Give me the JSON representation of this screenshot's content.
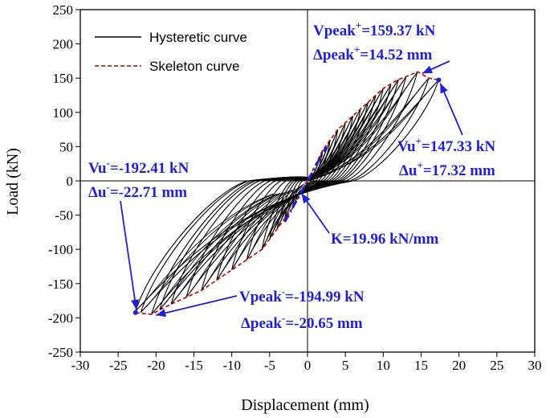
{
  "chart_data": {
    "type": "line",
    "xlabel": "Displacement (mm)",
    "ylabel": "Load (kN)",
    "xlim": [
      -30,
      30
    ],
    "ylim": [
      -250,
      250
    ],
    "x_ticks": [
      -30,
      -25,
      -20,
      -15,
      -10,
      -5,
      0,
      5,
      10,
      15,
      20,
      25,
      30
    ],
    "y_ticks": [
      -250,
      -200,
      -150,
      -100,
      -50,
      0,
      50,
      100,
      150,
      200,
      250
    ],
    "legend": [
      {
        "name": "Hysteretic curve",
        "color": "#000000",
        "style": "solid"
      },
      {
        "name": "Skeleton curve",
        "color": "#c00000",
        "style": "dashed"
      }
    ],
    "hysteresis_cycles": [
      {
        "x_pos": 2,
        "y_pos": 45,
        "x_neg": -2,
        "y_neg": -40
      },
      {
        "x_pos": 3,
        "y_pos": 60,
        "x_neg": -3,
        "y_neg": -55
      },
      {
        "x_pos": 4,
        "y_pos": 75,
        "x_neg": -4,
        "y_neg": -70
      },
      {
        "x_pos": 5,
        "y_pos": 85,
        "x_neg": -5,
        "y_neg": -85
      },
      {
        "x_pos": 6,
        "y_pos": 95,
        "x_neg": -6,
        "y_neg": -100
      },
      {
        "x_pos": 7,
        "y_pos": 105,
        "x_neg": -8,
        "y_neg": -115
      },
      {
        "x_pos": 8,
        "y_pos": 115,
        "x_neg": -10,
        "y_neg": -130
      },
      {
        "x_pos": 9,
        "y_pos": 125,
        "x_neg": -12,
        "y_neg": -145
      },
      {
        "x_pos": 10,
        "y_pos": 135,
        "x_neg": -14,
        "y_neg": -160
      },
      {
        "x_pos": 11,
        "y_pos": 140,
        "x_neg": -16,
        "y_neg": -170
      },
      {
        "x_pos": 12,
        "y_pos": 148,
        "x_neg": -18,
        "y_neg": -180
      },
      {
        "x_pos": 13,
        "y_pos": 152,
        "x_neg": -19.5,
        "y_neg": -188
      },
      {
        "x_pos": 14.5,
        "y_pos": 159,
        "x_neg": -20.6,
        "y_neg": -195
      },
      {
        "x_pos": 16,
        "y_pos": 150,
        "x_neg": -22,
        "y_neg": -192
      },
      {
        "x_pos": 17.3,
        "y_pos": 147,
        "x_neg": -22.7,
        "y_neg": -190
      }
    ],
    "skeleton_curve": {
      "x": [
        -22.71,
        -20.65,
        -18,
        -16,
        -14,
        -12,
        -10,
        -8,
        -6,
        -4,
        -2,
        0,
        2,
        4,
        6,
        8,
        10,
        12,
        13,
        14.52,
        16,
        17.32
      ],
      "y": [
        -192.41,
        -194.99,
        -180,
        -170,
        -160,
        -145,
        -130,
        -115,
        -100,
        -70,
        -40,
        0,
        45,
        75,
        95,
        115,
        135,
        148,
        152,
        159.37,
        150,
        147.33
      ]
    },
    "stiffness_line": {
      "label": "K=19.96 kN/mm",
      "slope": 19.96,
      "x_range": [
        -3,
        2.5
      ]
    },
    "annotations": [
      {
        "id": "peak-pos",
        "line1_main": "Vpeak",
        "line1_sup": "+",
        "line1_rest": "=159.37 kN",
        "line2_main": "Δpeak",
        "line2_sup": "+",
        "line2_rest": "=14.52 mm",
        "point_x": 14.52,
        "point_y": 159.37
      },
      {
        "id": "ult-pos",
        "line1_main": "Vu",
        "line1_sup": "+",
        "line1_rest": "=147.33 kN",
        "line2_main": "Δu",
        "line2_sup": "+",
        "line2_rest": "=17.32 mm",
        "point_x": 17.32,
        "point_y": 147.33
      },
      {
        "id": "ult-neg",
        "line1_main": "Vu",
        "line1_sup": "-",
        "line1_rest": "=-192.41 kN",
        "line2_main": "Δu",
        "line2_sup": "-",
        "line2_rest": "=-22.71 mm",
        "point_x": -22.71,
        "point_y": -192.41
      },
      {
        "id": "peak-neg",
        "line1_main": "Vpeak",
        "line1_sup": "-",
        "line1_rest": "=-194.99 kN",
        "line2_main": "Δpeak",
        "line2_sup": "-",
        "line2_rest": "=-20.65 mm",
        "point_x": -20.65,
        "point_y": -194.99
      }
    ],
    "annotation_color": "#1f1fd6"
  }
}
